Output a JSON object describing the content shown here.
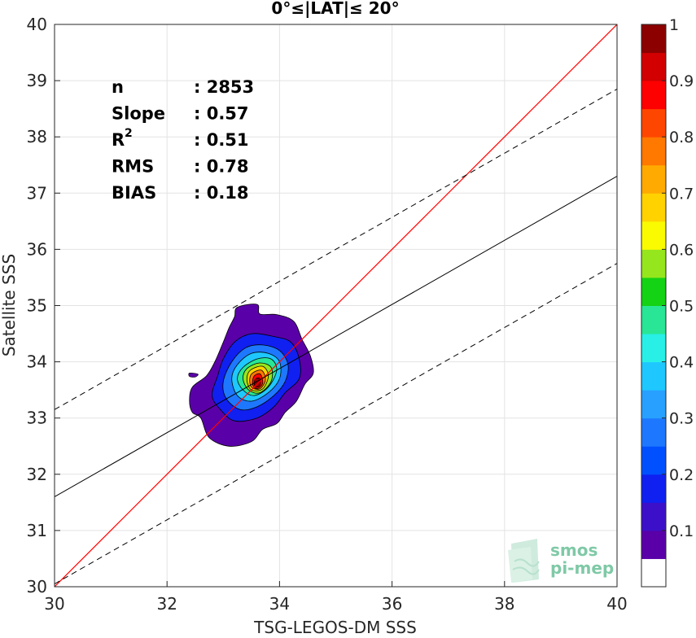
{
  "chart_data": {
    "type": "scatter",
    "title": "0°≤|LAT|≤ 20°",
    "xlabel": "TSG-LEGOS-DM SSS",
    "ylabel": "Satellite SSS",
    "xlim": [
      30,
      40
    ],
    "ylim": [
      30,
      40
    ],
    "x_ticks": [
      "30",
      "32",
      "34",
      "36",
      "38",
      "40"
    ],
    "y_ticks": [
      "30",
      "31",
      "32",
      "33",
      "34",
      "35",
      "36",
      "37",
      "38",
      "39",
      "40"
    ],
    "grid": true,
    "stats": [
      {
        "label": "n",
        "value": ": 2853"
      },
      {
        "label": "Slope",
        "value": ": 0.57"
      },
      {
        "label": "R",
        "sup": "2",
        "value": ": 0.51"
      },
      {
        "label": "RMS",
        "value": ": 0.78"
      },
      {
        "label": "BIAS",
        "value": ": 0.18"
      }
    ],
    "lines": {
      "identity": {
        "x": [
          30,
          40
        ],
        "y": [
          30,
          40
        ],
        "color": "#ff0000"
      },
      "fit": {
        "x": [
          30,
          40
        ],
        "y": [
          31.6,
          37.3
        ],
        "color": "#000000"
      },
      "upper_bound": {
        "x": [
          30,
          40
        ],
        "y": [
          33.15,
          38.85
        ],
        "style": "dashed"
      },
      "lower_bound": {
        "x": [
          30,
          40
        ],
        "y": [
          30.05,
          35.75
        ],
        "style": "dashed"
      }
    },
    "density_contours": [
      {
        "level": 0.05,
        "points": [
          [
            33.25,
            34.97
          ],
          [
            33.6,
            35.02
          ],
          [
            33.65,
            34.85
          ],
          [
            33.95,
            34.84
          ],
          [
            34.25,
            34.72
          ],
          [
            34.4,
            34.4
          ],
          [
            34.55,
            34.1
          ],
          [
            34.6,
            33.8
          ],
          [
            34.45,
            33.6
          ],
          [
            34.3,
            33.3
          ],
          [
            34.1,
            33.1
          ],
          [
            33.95,
            32.9
          ],
          [
            33.7,
            32.8
          ],
          [
            33.5,
            32.58
          ],
          [
            33.1,
            32.5
          ],
          [
            32.75,
            32.65
          ],
          [
            32.6,
            33.0
          ],
          [
            32.45,
            33.1
          ],
          [
            32.4,
            33.3
          ],
          [
            32.45,
            33.55
          ],
          [
            32.7,
            33.75
          ],
          [
            32.85,
            34.0
          ],
          [
            33.0,
            34.35
          ],
          [
            33.1,
            34.6
          ],
          [
            33.2,
            34.8
          ]
        ]
      },
      {
        "level": 0.15,
        "points": [
          [
            33.0,
            34.05
          ],
          [
            33.2,
            34.35
          ],
          [
            33.5,
            34.5
          ],
          [
            33.9,
            34.45
          ],
          [
            34.2,
            34.35
          ],
          [
            34.35,
            34.05
          ],
          [
            34.35,
            33.7
          ],
          [
            34.1,
            33.45
          ],
          [
            33.9,
            33.2
          ],
          [
            33.6,
            33.0
          ],
          [
            33.2,
            32.95
          ],
          [
            32.95,
            33.15
          ],
          [
            32.8,
            33.4
          ],
          [
            32.9,
            33.75
          ]
        ]
      },
      {
        "level": 0.25,
        "points": [
          [
            33.15,
            34.0
          ],
          [
            33.4,
            34.25
          ],
          [
            33.7,
            34.3
          ],
          [
            34.0,
            34.2
          ],
          [
            34.15,
            33.95
          ],
          [
            34.1,
            33.65
          ],
          [
            33.9,
            33.4
          ],
          [
            33.6,
            33.2
          ],
          [
            33.3,
            33.15
          ],
          [
            33.05,
            33.35
          ],
          [
            33.0,
            33.65
          ]
        ]
      },
      {
        "level": 0.35,
        "points": [
          [
            33.25,
            33.95
          ],
          [
            33.5,
            34.15
          ],
          [
            33.8,
            34.15
          ],
          [
            34.0,
            34.0
          ],
          [
            34.0,
            33.7
          ],
          [
            33.8,
            33.45
          ],
          [
            33.5,
            33.3
          ],
          [
            33.25,
            33.4
          ],
          [
            33.15,
            33.7
          ]
        ]
      },
      {
        "level": 0.45,
        "points": [
          [
            33.35,
            33.9
          ],
          [
            33.6,
            34.05
          ],
          [
            33.85,
            34.05
          ],
          [
            33.95,
            33.85
          ],
          [
            33.8,
            33.55
          ],
          [
            33.55,
            33.4
          ],
          [
            33.35,
            33.5
          ],
          [
            33.25,
            33.7
          ]
        ]
      },
      {
        "level": 0.55,
        "points": [
          [
            33.42,
            33.88
          ],
          [
            33.65,
            33.98
          ],
          [
            33.85,
            33.9
          ],
          [
            33.85,
            33.65
          ],
          [
            33.65,
            33.45
          ],
          [
            33.45,
            33.5
          ],
          [
            33.35,
            33.7
          ]
        ]
      },
      {
        "level": 0.65,
        "points": [
          [
            33.48,
            33.85
          ],
          [
            33.7,
            33.92
          ],
          [
            33.8,
            33.75
          ],
          [
            33.7,
            33.52
          ],
          [
            33.5,
            33.5
          ],
          [
            33.42,
            33.68
          ]
        ]
      },
      {
        "level": 0.75,
        "points": [
          [
            33.52,
            33.8
          ],
          [
            33.68,
            33.85
          ],
          [
            33.75,
            33.68
          ],
          [
            33.65,
            33.52
          ],
          [
            33.5,
            33.55
          ],
          [
            33.47,
            33.7
          ]
        ]
      },
      {
        "level": 0.85,
        "points": [
          [
            33.55,
            33.75
          ],
          [
            33.66,
            33.78
          ],
          [
            33.7,
            33.62
          ],
          [
            33.6,
            33.52
          ],
          [
            33.52,
            33.6
          ]
        ]
      },
      {
        "level": 0.95,
        "points": [
          [
            33.58,
            33.7
          ],
          [
            33.65,
            33.7
          ],
          [
            33.65,
            33.58
          ],
          [
            33.58,
            33.55
          ],
          [
            33.55,
            33.62
          ]
        ]
      }
    ],
    "isolated_patch": {
      "level": 0.05,
      "points": [
        [
          32.4,
          33.8
        ],
        [
          32.55,
          33.78
        ],
        [
          32.5,
          33.73
        ],
        [
          32.4,
          33.74
        ]
      ]
    },
    "colorbar": {
      "range": [
        0,
        1
      ],
      "tick_labels": [
        "0.1",
        "0.2",
        "0.3",
        "0.4",
        "0.5",
        "0.6",
        "0.7",
        "0.8",
        "0.9",
        "1"
      ],
      "tick_values": [
        0.1,
        0.2,
        0.3,
        0.4,
        0.5,
        0.6,
        0.7,
        0.8,
        0.9,
        1.0
      ],
      "levels": [
        0,
        0.05,
        0.1,
        0.15,
        0.2,
        0.25,
        0.3,
        0.35,
        0.4,
        0.45,
        0.5,
        0.55,
        0.6,
        0.65,
        0.7,
        0.75,
        0.8,
        0.85,
        0.9,
        0.95,
        1.0
      ],
      "colors": [
        "#ffffff",
        "#5a00a8",
        "#3c10c8",
        "#1020f0",
        "#0050ff",
        "#1e78ff",
        "#28a0ff",
        "#1ec8ff",
        "#28f0e6",
        "#28e696",
        "#14d214",
        "#96e61e",
        "#fafa00",
        "#ffd200",
        "#ffaa00",
        "#ff7800",
        "#ff4600",
        "#ff0000",
        "#d20000",
        "#8c0000"
      ]
    }
  },
  "logo": {
    "line1": "smos",
    "line2": "pi-mep"
  }
}
